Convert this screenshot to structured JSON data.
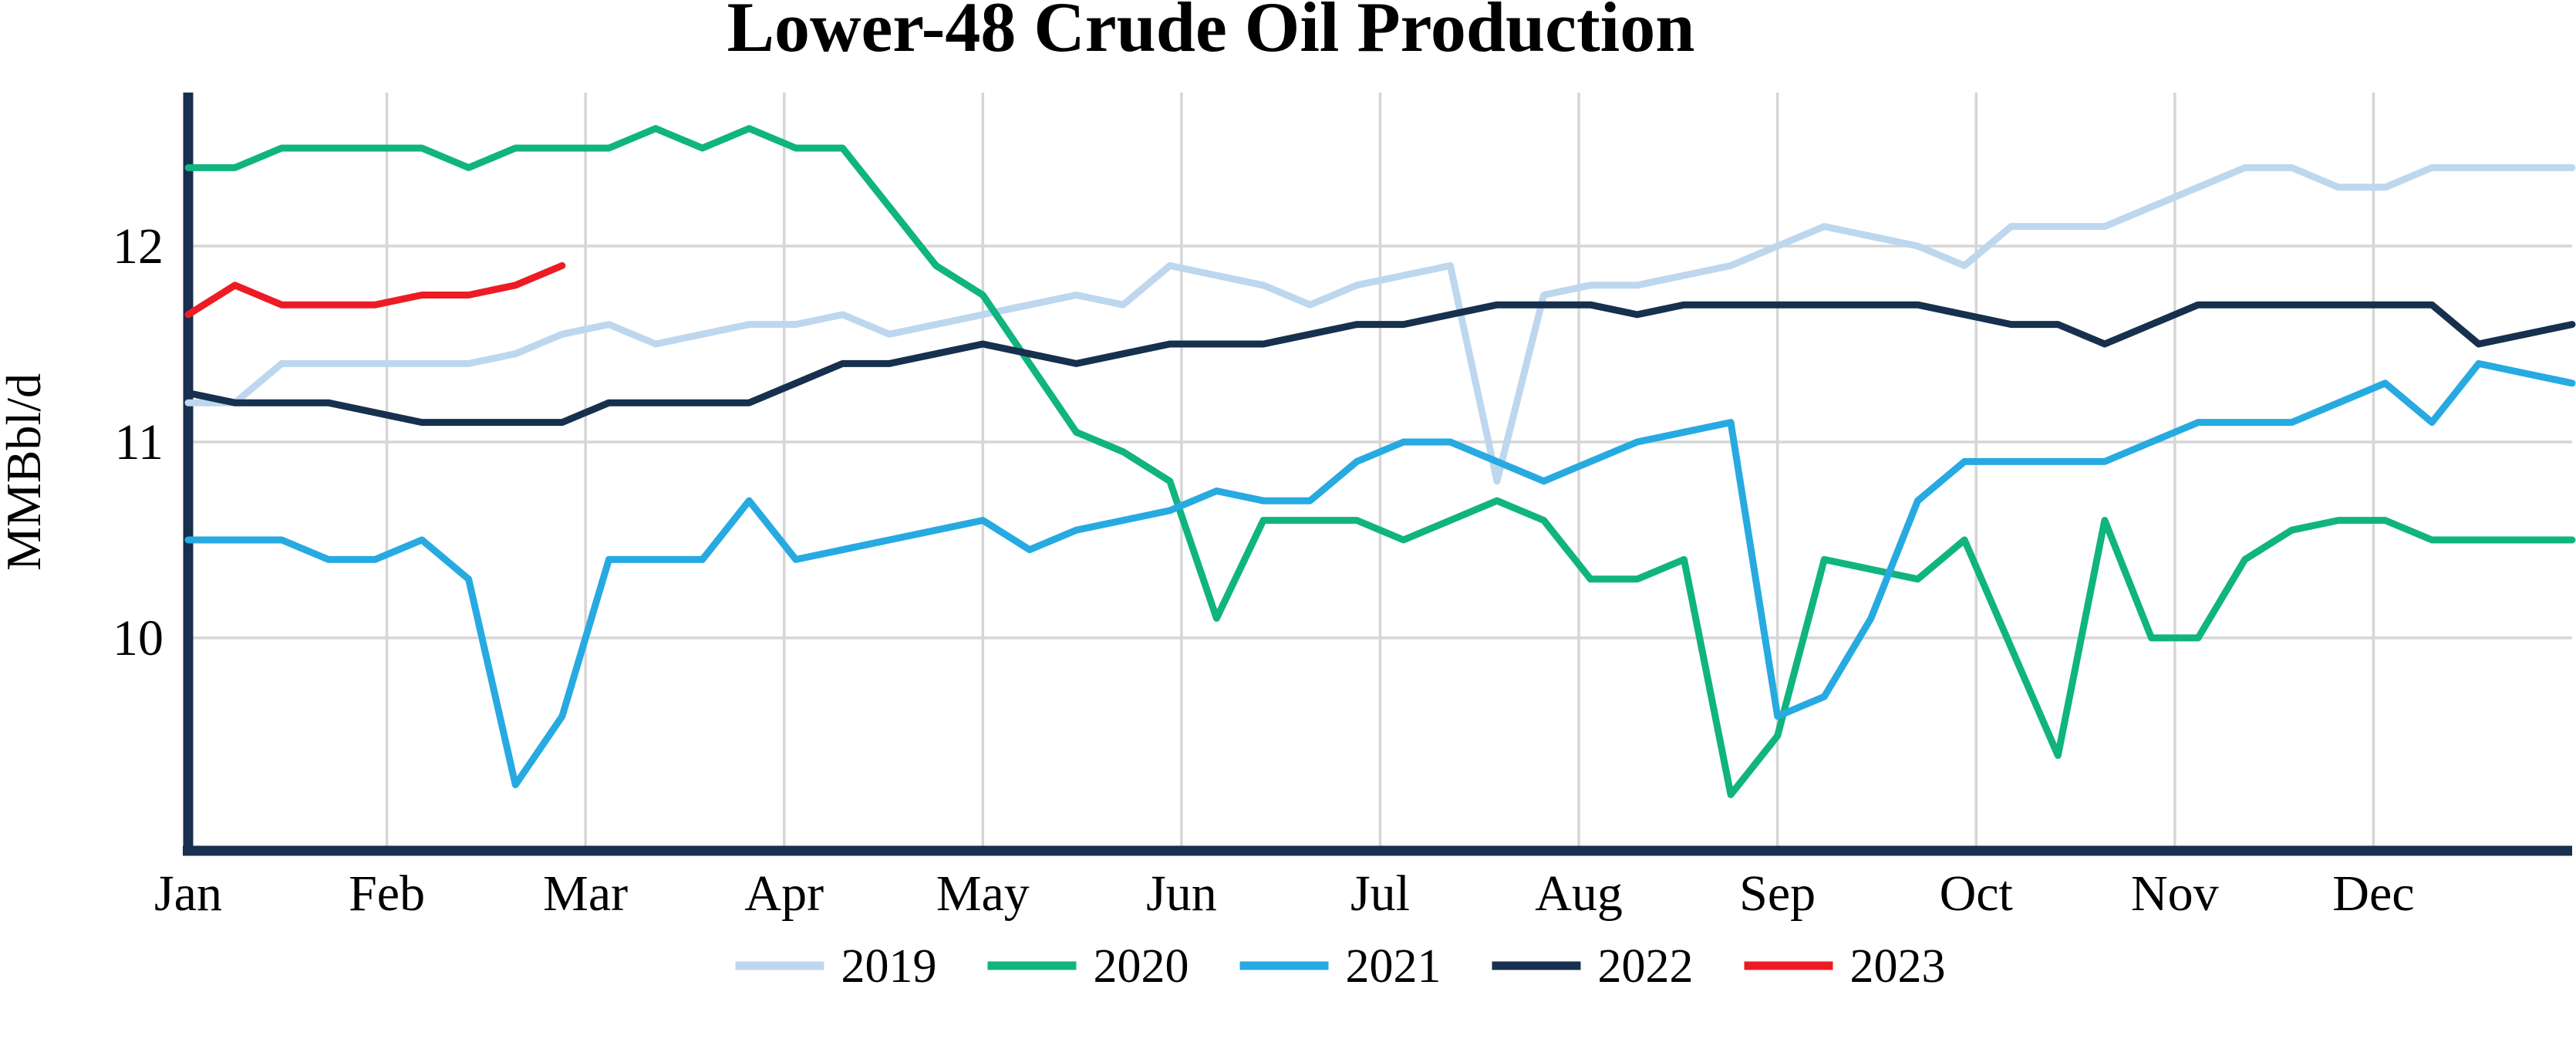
{
  "chart_data": {
    "type": "line",
    "title": "Lower-48 Crude Oil Production",
    "xlabel": "",
    "ylabel": "MMBbl/d",
    "x_description": "52 weekly data points per year, Jan through Dec",
    "months": [
      "Jan",
      "Feb",
      "Mar",
      "Apr",
      "May",
      "Jun",
      "Jul",
      "Aug",
      "Sep",
      "Oct",
      "Nov",
      "Dec"
    ],
    "yticks": [
      12,
      11,
      10
    ],
    "ylim": [
      8.9,
      12.78
    ],
    "grid": true,
    "legend_position": "bottom-center",
    "axis_color": "#16304D",
    "grid_color": "#D6D6D6",
    "background_color": "#FFFFFF",
    "series": [
      {
        "name": "2019",
        "color": "#BDD7EE",
        "values": [
          11.2,
          11.2,
          11.4,
          11.4,
          11.4,
          11.4,
          11.4,
          11.45,
          11.55,
          11.6,
          11.5,
          11.55,
          11.6,
          11.6,
          11.65,
          11.55,
          11.6,
          11.65,
          11.7,
          11.75,
          11.7,
          11.9,
          11.85,
          11.8,
          11.7,
          11.8,
          11.85,
          11.9,
          10.8,
          11.75,
          11.8,
          11.8,
          11.85,
          11.9,
          12.0,
          12.1,
          12.05,
          12.0,
          11.9,
          12.1,
          12.1,
          12.1,
          12.2,
          12.3,
          12.4,
          12.4,
          12.3,
          12.3,
          12.4,
          12.4,
          12.4,
          12.4
        ]
      },
      {
        "name": "2020",
        "color": "#10B47E",
        "values": [
          12.4,
          12.4,
          12.5,
          12.5,
          12.5,
          12.5,
          12.4,
          12.5,
          12.5,
          12.5,
          12.6,
          12.5,
          12.6,
          12.5,
          12.5,
          12.2,
          11.9,
          11.75,
          11.4,
          11.05,
          10.95,
          10.8,
          10.1,
          10.6,
          10.6,
          10.6,
          10.5,
          10.6,
          10.7,
          10.6,
          10.3,
          10.3,
          10.4,
          9.2,
          9.5,
          10.4,
          10.35,
          10.3,
          10.5,
          9.95,
          9.4,
          10.6,
          10.0,
          10.0,
          10.4,
          10.55,
          10.6,
          10.6,
          10.5,
          10.5,
          10.5,
          10.5
        ]
      },
      {
        "name": "2021",
        "color": "#27AAE1",
        "values": [
          10.5,
          10.5,
          10.5,
          10.4,
          10.4,
          10.5,
          10.3,
          9.25,
          9.6,
          10.4,
          10.4,
          10.4,
          10.7,
          10.4,
          10.45,
          10.5,
          10.55,
          10.6,
          10.45,
          10.55,
          10.6,
          10.65,
          10.75,
          10.7,
          10.7,
          10.9,
          11.0,
          11.0,
          10.9,
          10.8,
          10.9,
          11.0,
          11.05,
          11.1,
          9.6,
          9.7,
          10.1,
          10.7,
          10.9,
          10.9,
          10.9,
          10.9,
          11.0,
          11.1,
          11.1,
          11.1,
          11.2,
          11.3,
          11.1,
          11.4,
          11.35,
          11.3
        ]
      },
      {
        "name": "2022",
        "color": "#16304D",
        "values": [
          11.25,
          11.2,
          11.2,
          11.2,
          11.15,
          11.1,
          11.1,
          11.1,
          11.1,
          11.2,
          11.2,
          11.2,
          11.2,
          11.3,
          11.4,
          11.4,
          11.45,
          11.5,
          11.45,
          11.4,
          11.45,
          11.5,
          11.5,
          11.5,
          11.55,
          11.6,
          11.6,
          11.65,
          11.7,
          11.7,
          11.7,
          11.65,
          11.7,
          11.7,
          11.7,
          11.7,
          11.7,
          11.7,
          11.65,
          11.6,
          11.6,
          11.5,
          11.6,
          11.7,
          11.7,
          11.7,
          11.7,
          11.7,
          11.7,
          11.5,
          11.55,
          11.6
        ]
      },
      {
        "name": "2023",
        "color": "#ED1C24",
        "values": [
          11.65,
          11.8,
          11.7,
          11.7,
          11.7,
          11.75,
          11.75,
          11.8,
          11.9
        ]
      }
    ]
  }
}
